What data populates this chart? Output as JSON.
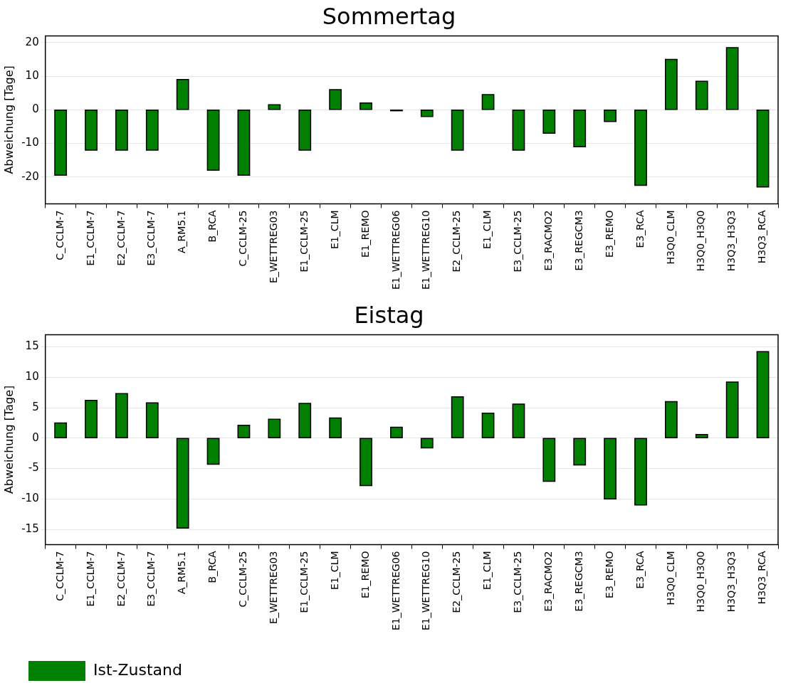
{
  "chart_data": [
    {
      "type": "bar",
      "title": "Sommertag",
      "ylabel": "Abweichung [Tage]",
      "categories": [
        "C_CCLM-7",
        "E1_CCLM-7",
        "E2_CCLM-7",
        "E3_CCLM-7",
        "A_RM5.1",
        "B_RCA",
        "C_CCLM-25",
        "E_WETTREG03",
        "E1_CCLM-25",
        "E1_CLM",
        "E1_REMO",
        "E1_WETTREG06",
        "E1_WETTREG10",
        "E2_CCLM-25",
        "E1_CLM",
        "E3_CCLM-25",
        "E3_RACMO2",
        "E3_REGCM3",
        "E3_REMO",
        "E3_RCA",
        "H3Q0_CLM",
        "H3Q0_H3Q0",
        "H3Q3_H3Q3",
        "H3Q3_RCA"
      ],
      "series": [
        {
          "color": "#007f00",
          "values": [
            -19.5,
            -12,
            -12,
            -12,
            9,
            -18,
            -19.5,
            1.5,
            -12,
            6,
            2,
            -0.3,
            -2,
            -12,
            4.5,
            -12,
            -7,
            -11,
            -3.5,
            -22.5,
            15,
            8.5,
            18.5,
            -23
          ]
        }
      ],
      "ylim": [
        -28,
        22
      ],
      "yticks": [
        -20,
        -10,
        0,
        10,
        20
      ],
      "grid": "y"
    },
    {
      "type": "bar",
      "title": "Eistag",
      "ylabel": "Abweichung [Tage]",
      "categories": [
        "C_CCLM-7",
        "E1_CCLM-7",
        "E2_CCLM-7",
        "E3_CCLM-7",
        "A_RM5.1",
        "B_RCA",
        "C_CCLM-25",
        "E_WETTREG03",
        "E1_CCLM-25",
        "E1_CLM",
        "E1_REMO",
        "E1_WETTREG06",
        "E1_WETTREG10",
        "E2_CCLM-25",
        "E1_CLM",
        "E3_CCLM-25",
        "E3_RACMO2",
        "E3_REGCM3",
        "E3_REMO",
        "E3_RCA",
        "H3Q0_CLM",
        "H3Q0_H3Q0",
        "H3Q3_H3Q3",
        "H3Q3_RCA"
      ],
      "series": [
        {
          "name": "Ist-Zustand",
          "color": "#007f00",
          "values": [
            2.5,
            6.2,
            7.3,
            5.8,
            -14.8,
            -4.3,
            2.1,
            3.1,
            5.7,
            3.3,
            -7.8,
            1.8,
            -1.6,
            6.8,
            4.1,
            5.6,
            -7.1,
            -4.4,
            -10,
            -11,
            6,
            0.6,
            9.2,
            14.2
          ]
        }
      ],
      "ylim": [
        -17.5,
        17
      ],
      "yticks": [
        -15,
        -10,
        -5,
        0,
        5,
        10,
        15
      ],
      "grid": "y",
      "legend": "bottom left"
    }
  ]
}
